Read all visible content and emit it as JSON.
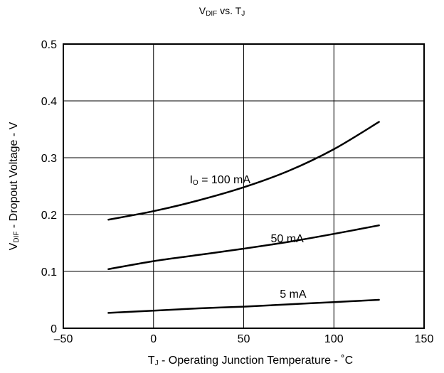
{
  "chart_data": {
    "type": "line",
    "title": {
      "main_a": "V",
      "main_a_sub": "DIF",
      "mid": " vs. T",
      "main_b_sub": "J"
    },
    "xlabel": {
      "sym": "T",
      "sub": "J",
      "text": " - Operating Junction Temperature - ˚C"
    },
    "ylabel": {
      "sym": "V",
      "sub": "DIF",
      "text": " - Dropout Voltage - V"
    },
    "xlim": [
      -50,
      150
    ],
    "ylim": [
      0,
      0.5
    ],
    "xticks": [
      -50,
      0,
      50,
      100,
      150
    ],
    "xtick_labels": [
      "–50",
      "0",
      "50",
      "100",
      "150"
    ],
    "yticks": [
      0,
      0.1,
      0.2,
      0.3,
      0.4,
      0.5
    ],
    "ytick_labels": [
      "0",
      "0.1",
      "0.2",
      "0.3",
      "0.4",
      "0.5"
    ],
    "grid": true,
    "series": [
      {
        "x": [
          -25,
          0,
          25,
          50,
          75,
          100,
          125
        ],
        "y": [
          0.191,
          0.206,
          0.225,
          0.248,
          0.277,
          0.315,
          0.363
        ]
      },
      {
        "x": [
          -25,
          0,
          25,
          50,
          75,
          100,
          125
        ],
        "y": [
          0.104,
          0.118,
          0.129,
          0.14,
          0.152,
          0.166,
          0.181
        ]
      },
      {
        "x": [
          -25,
          0,
          25,
          50,
          75,
          100,
          125
        ],
        "y": [
          0.027,
          0.031,
          0.035,
          0.038,
          0.042,
          0.046,
          0.05
        ]
      }
    ],
    "annotations": [
      {
        "sym": "I",
        "sub": "O",
        "text": " = 100 mA",
        "x": 20,
        "y": 0.255
      },
      {
        "text": "50 mA",
        "x": 65,
        "y": 0.151
      },
      {
        "text": "5 mA",
        "x": 70,
        "y": 0.054
      }
    ]
  }
}
